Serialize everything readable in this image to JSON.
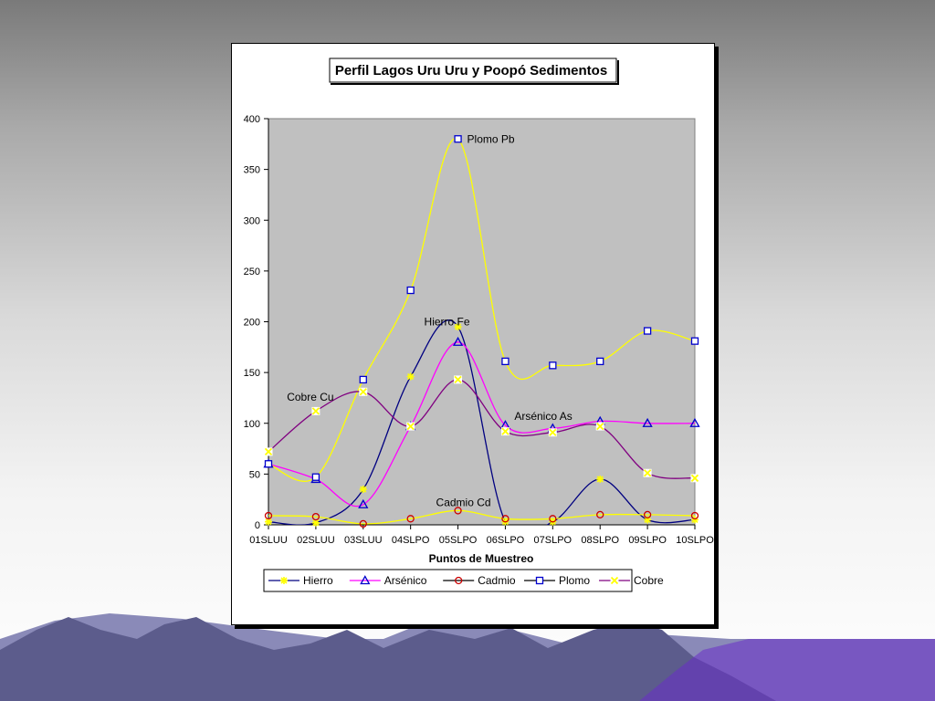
{
  "colors": {
    "plot_bg": "#c0c0c0",
    "mountain_dark": "#5c5c8c",
    "mountain_light": "#8a8ab8",
    "accent": "#6a2ec8"
  },
  "chart_data": {
    "type": "line",
    "title": "Perfil Lagos Uru Uru y Poopó Sedimentos",
    "xlabel": "Puntos de Muestreo",
    "ylabel": "",
    "ylim": [
      0,
      400
    ],
    "yticks": [
      0,
      50,
      100,
      150,
      200,
      250,
      300,
      350,
      400
    ],
    "grid": false,
    "legend_position": "bottom",
    "categories": [
      "01SLUU",
      "02SLUU",
      "03SLUU",
      "04SLPO",
      "05SLPO",
      "06SLPO",
      "07SLPO",
      "08SLPO",
      "09SLPO",
      "10SLPO"
    ],
    "series": [
      {
        "name": "Hierro",
        "color": "#000080",
        "marker": "star",
        "marker_color": "#ffff00",
        "values": [
          3,
          2,
          35,
          146,
          195,
          3,
          3,
          45,
          5,
          5
        ]
      },
      {
        "name": "Arsénico",
        "color": "#ff00ff",
        "marker": "triangle",
        "marker_color": "#0000cc",
        "values": [
          60,
          45,
          20,
          97,
          180,
          98,
          95,
          102,
          100,
          100
        ]
      },
      {
        "name": "Cadmio",
        "color": "#ffff00",
        "marker": "circle",
        "marker_color": "#cc0000",
        "values": [
          9,
          8,
          1,
          6,
          14,
          6,
          6,
          10,
          10,
          9
        ]
      },
      {
        "name": "Plomo",
        "color": "#ffff00",
        "marker": "square",
        "marker_color": "#0000cc",
        "values": [
          60,
          47,
          143,
          231,
          380,
          161,
          157,
          161,
          191,
          181
        ]
      },
      {
        "name": "Cobre",
        "color": "#800080",
        "marker": "xsquare",
        "marker_color": "#ffff00",
        "values": [
          72,
          112,
          131,
          97,
          143,
          92,
          91,
          97,
          51,
          46
        ]
      }
    ],
    "annotations": [
      {
        "text": "Plomo Pb",
        "category": "05SLPO",
        "y": 380
      },
      {
        "text": "Hierro Fe",
        "category": "05SLPO",
        "y": 200
      },
      {
        "text": "Cobre Cu",
        "category": "02SLUU",
        "y": 126
      },
      {
        "text": "Arsénico As",
        "category": "07SLPO",
        "y": 107
      },
      {
        "text": "Cadmio Cd",
        "category": "05SLPO",
        "y": 22
      }
    ]
  }
}
